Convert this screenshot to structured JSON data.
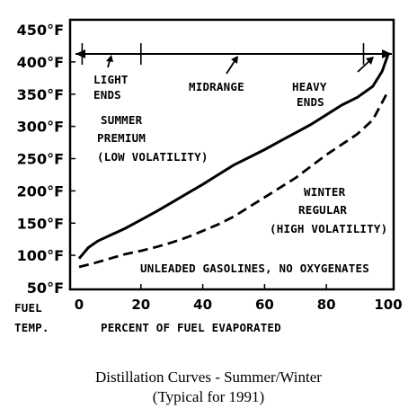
{
  "chart_data": {
    "type": "line",
    "xlabel": "PERCENT OF FUEL EVAPORATED",
    "ylabel_lines": [
      "FUEL",
      "TEMP."
    ],
    "xlim": [
      0,
      100
    ],
    "ylim": [
      50,
      450
    ],
    "xticks": [
      0,
      20,
      40,
      60,
      80,
      100
    ],
    "yticks": [
      50,
      100,
      150,
      200,
      250,
      300,
      350,
      400,
      450
    ],
    "ytick_labels": [
      "50°F",
      "100°F",
      "150°F",
      "200°F",
      "250°F",
      "300°F",
      "350°F",
      "400°F",
      "450°F"
    ],
    "grid": false,
    "series": [
      {
        "name": "SUMMER PREMIUM (LOW VOLATILITY)",
        "style": "solid",
        "x": [
          0,
          3,
          6,
          10,
          15,
          20,
          25,
          30,
          35,
          40,
          45,
          50,
          55,
          60,
          65,
          70,
          75,
          80,
          85,
          90,
          95,
          98,
          100
        ],
        "y": [
          95,
          112,
          122,
          131,
          142,
          155,
          168,
          182,
          196,
          210,
          225,
          240,
          252,
          264,
          277,
          290,
          303,
          318,
          333,
          345,
          362,
          385,
          412
        ]
      },
      {
        "name": "WINTER REGULAR (HIGH VOLATILITY)",
        "style": "dashed",
        "x": [
          0,
          5,
          10,
          15,
          20,
          25,
          30,
          35,
          40,
          45,
          50,
          55,
          60,
          65,
          70,
          75,
          80,
          85,
          90,
          95,
          100
        ],
        "y": [
          82,
          88,
          95,
          102,
          107,
          113,
          120,
          128,
          138,
          148,
          160,
          175,
          190,
          205,
          220,
          238,
          256,
          272,
          288,
          310,
          355
        ]
      }
    ],
    "annotations": {
      "summer_label": [
        "SUMMER",
        "PREMIUM",
        "(LOW VOLATILITY)"
      ],
      "winter_label": [
        "WINTER",
        "REGULAR",
        "(HIGH VOLATILITY)"
      ],
      "light_ends": [
        "LIGHT",
        "ENDS"
      ],
      "midrange": "MIDRANGE",
      "heavy_ends": [
        "HEAVY",
        "ENDS"
      ],
      "note": "UNLEADED GASOLINES, NO OXYGENATES",
      "range_markers_x": [
        0,
        20,
        92,
        100
      ]
    }
  },
  "caption": {
    "line1": "Distillation Curves - Summer/Winter",
    "line2": "(Typical for 1991)"
  }
}
